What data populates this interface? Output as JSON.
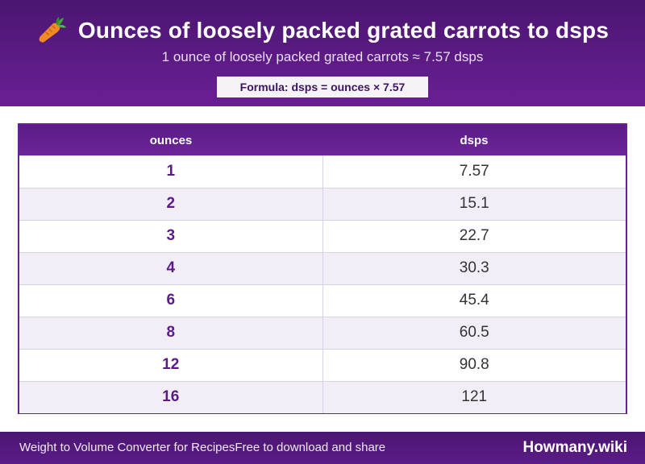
{
  "header": {
    "title": "Ounces of loosely packed grated carrots to dsps",
    "subtitle": "1 ounce of loosely packed grated carrots ≈ 7.57 dsps",
    "formula": "Formula: dsps = ounces × 7.57",
    "icon": "carrot-icon"
  },
  "table": {
    "columns": [
      "ounces",
      "dsps"
    ],
    "rows": [
      {
        "ounces": "1",
        "dsps": "7.57"
      },
      {
        "ounces": "2",
        "dsps": "15.1"
      },
      {
        "ounces": "3",
        "dsps": "22.7"
      },
      {
        "ounces": "4",
        "dsps": "30.3"
      },
      {
        "ounces": "6",
        "dsps": "45.4"
      },
      {
        "ounces": "8",
        "dsps": "60.5"
      },
      {
        "ounces": "12",
        "dsps": "90.8"
      },
      {
        "ounces": "16",
        "dsps": "121"
      }
    ]
  },
  "footer": {
    "left_text_a": "Weight to Volume Converter for Recipes",
    "left_text_b": "Free to download and share",
    "brand": "Howmany.wiki"
  },
  "colors": {
    "header_bg": "#5a1b86",
    "accent_text": "#5b1a86",
    "stripe": "#f2eef8"
  }
}
